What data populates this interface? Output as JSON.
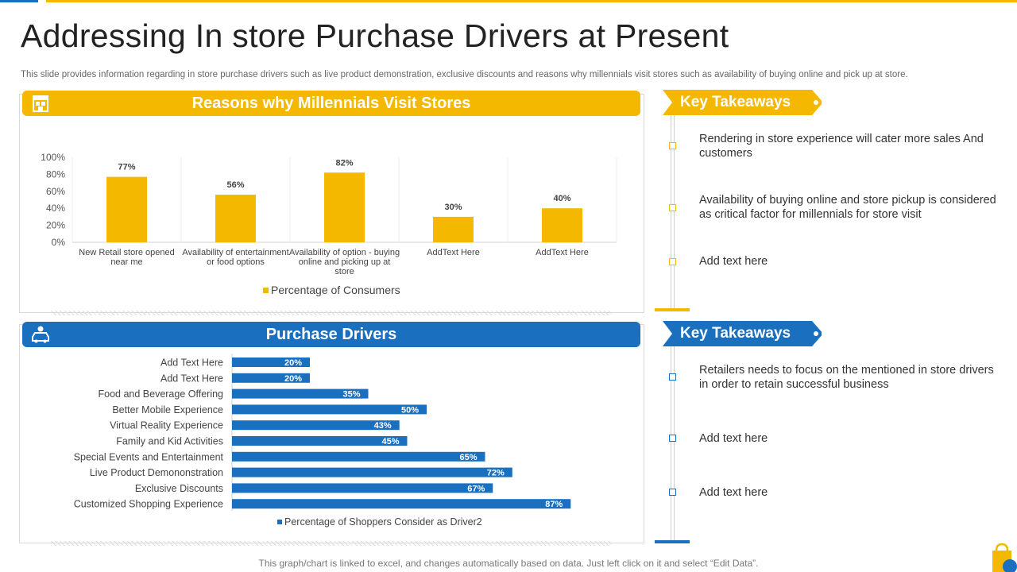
{
  "slide": {
    "title": "Addressing In store Purchase Drivers at Present",
    "subtitle": "This slide provides information regarding in store purchase drivers such as live product demonstration, exclusive discounts and reasons why millennials visit stores such as availability of buying online and pick up at store.",
    "footnote": "This graph/chart is linked to excel,  and changes automatically based on data. Just left click on it and select “Edit Data”."
  },
  "panels": {
    "top_title": "Reasons why Millennials Visit Stores",
    "bottom_title": "Purchase Drivers",
    "top_icon": "store-icon",
    "bottom_icon": "car-user-icon"
  },
  "takeaways": {
    "top_label": "Key Takeaways",
    "bottom_label": "Key Takeaways",
    "top_items": [
      "Rendering in store experience will cater more sales And customers",
      "Availability  of buying online and store pickup is considered as critical factor for millennials for store visit",
      "Add text here"
    ],
    "bottom_items": [
      "Retailers needs to focus on the mentioned in store drivers in order to retain successful business",
      "Add text here",
      "Add text here"
    ]
  },
  "colors": {
    "yellow": "#f5b800",
    "blue": "#1a6fbf"
  },
  "chart_data": [
    {
      "type": "bar",
      "title": "Reasons why Millennials Visit Stores",
      "categories": [
        [
          "New Retail store opened",
          "near me"
        ],
        [
          "Availability of entertainment",
          "or food  options"
        ],
        [
          "Availability of option - buying",
          "online and picking up at",
          "store"
        ],
        [
          "AddText Here"
        ],
        [
          "AddText Here"
        ]
      ],
      "series": [
        {
          "name": "Percentage of Consumers",
          "values": [
            77,
            56,
            82,
            30,
            40
          ]
        }
      ],
      "value_labels": [
        "77%",
        "56%",
        "82%",
        "30%",
        "40%"
      ],
      "y_ticks": [
        "0%",
        "20%",
        "40%",
        "60%",
        "80%",
        "100%"
      ],
      "ylim": [
        0,
        100
      ],
      "legend_position": "bottom"
    },
    {
      "type": "bar",
      "orientation": "horizontal",
      "title": "Purchase Drivers",
      "categories": [
        "Add Text Here",
        "Add Text Here",
        "Food and Beverage Offering",
        "Better Mobile Experience",
        "Virtual Reality Experience",
        "Family and Kid Activities",
        "Special Events and Entertainment",
        "Live Product Demononstration",
        "Exclusive Discounts",
        "Customized Shopping Experience"
      ],
      "series": [
        {
          "name": "Percentage of Shoppers Consider as Driver2",
          "values": [
            20,
            20,
            35,
            50,
            43,
            45,
            65,
            72,
            67,
            87
          ]
        }
      ],
      "value_labels": [
        "20%",
        "20%",
        "35%",
        "50%",
        "43%",
        "45%",
        "65%",
        "72%",
        "67%",
        "87%"
      ],
      "xlim": [
        0,
        100
      ],
      "legend_position": "bottom"
    }
  ]
}
